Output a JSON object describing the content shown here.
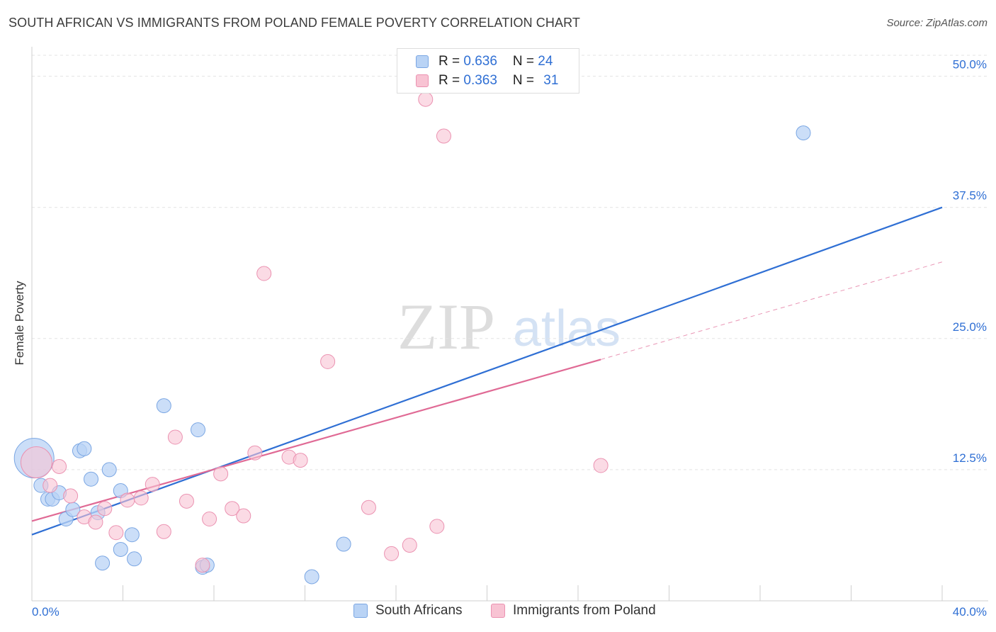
{
  "title": "SOUTH AFRICAN VS IMMIGRANTS FROM POLAND FEMALE POVERTY CORRELATION CHART",
  "source": "Source: ZipAtlas.com",
  "watermark": {
    "zip": "ZIP",
    "atlas": "atlas"
  },
  "legend_top": {
    "rows": [
      {
        "r_label": "R = ",
        "r_value": "0.636",
        "n_label": "N = ",
        "n_value": "24"
      },
      {
        "r_label": "R = ",
        "r_value": "0.363",
        "n_label": "N = ",
        "n_value": "31"
      }
    ]
  },
  "chart_data": {
    "type": "scatter",
    "title": "SOUTH AFRICAN VS IMMIGRANTS FROM POLAND FEMALE POVERTY CORRELATION CHART",
    "xlabel": "",
    "ylabel": "Female Poverty",
    "xlim": [
      0,
      40
    ],
    "ylim": [
      0,
      52
    ],
    "x_tick_labels": [
      "0.0%",
      "40.0%"
    ],
    "y_ticks": [
      12.5,
      25.0,
      37.5,
      50.0
    ],
    "y_tick_labels": [
      "12.5%",
      "25.0%",
      "37.5%",
      "50.0%"
    ],
    "grid": true,
    "colors": {
      "blue": "#2f6fd4",
      "pink": "#e06a95",
      "blue_fill": "#b9d3f5",
      "pink_fill": "#f8c3d3"
    },
    "series": [
      {
        "name": "South Africans",
        "color": "#2f6fd4",
        "points": [
          [
            0.1,
            13.6
          ],
          [
            0.4,
            11.0
          ],
          [
            0.7,
            9.7
          ],
          [
            0.9,
            9.7
          ],
          [
            1.2,
            10.3
          ],
          [
            1.5,
            7.8
          ],
          [
            1.8,
            8.7
          ],
          [
            2.1,
            14.3
          ],
          [
            2.3,
            14.5
          ],
          [
            2.6,
            11.6
          ],
          [
            2.9,
            8.4
          ],
          [
            3.1,
            3.6
          ],
          [
            3.4,
            12.5
          ],
          [
            3.9,
            10.5
          ],
          [
            3.9,
            4.9
          ],
          [
            4.4,
            6.3
          ],
          [
            4.5,
            4.0
          ],
          [
            5.8,
            18.6
          ],
          [
            7.3,
            16.3
          ],
          [
            7.5,
            3.2
          ],
          [
            7.7,
            3.4
          ],
          [
            12.3,
            2.3
          ],
          [
            13.7,
            5.4
          ],
          [
            33.9,
            44.6
          ]
        ],
        "sizes": [
          28,
          10,
          10,
          10,
          10,
          10,
          10,
          10,
          10,
          10,
          10,
          10,
          10,
          10,
          10,
          10,
          10,
          10,
          10,
          10,
          10,
          10,
          10,
          10
        ],
        "trend": {
          "x": [
            0,
            40
          ],
          "y": [
            6.3,
            37.5
          ],
          "style": "solid"
        }
      },
      {
        "name": "Immigrants from Poland",
        "color": "#e06a95",
        "points": [
          [
            0.2,
            13.2
          ],
          [
            0.8,
            11.0
          ],
          [
            1.2,
            12.8
          ],
          [
            1.7,
            10.0
          ],
          [
            2.3,
            8.0
          ],
          [
            2.8,
            7.5
          ],
          [
            3.2,
            8.8
          ],
          [
            3.7,
            6.5
          ],
          [
            4.2,
            9.6
          ],
          [
            4.8,
            9.8
          ],
          [
            5.3,
            11.1
          ],
          [
            5.8,
            6.6
          ],
          [
            6.3,
            15.6
          ],
          [
            6.8,
            9.5
          ],
          [
            7.5,
            3.4
          ],
          [
            7.8,
            7.8
          ],
          [
            8.3,
            12.1
          ],
          [
            8.8,
            8.8
          ],
          [
            9.3,
            8.1
          ],
          [
            9.8,
            14.1
          ],
          [
            10.2,
            31.2
          ],
          [
            11.3,
            13.7
          ],
          [
            11.8,
            13.4
          ],
          [
            13.0,
            22.8
          ],
          [
            14.8,
            8.9
          ],
          [
            15.8,
            4.5
          ],
          [
            16.6,
            5.3
          ],
          [
            17.3,
            47.8
          ],
          [
            17.8,
            7.1
          ],
          [
            18.1,
            44.3
          ],
          [
            25.0,
            12.9
          ]
        ],
        "sizes": [
          22,
          10,
          10,
          10,
          10,
          10,
          10,
          10,
          10,
          10,
          10,
          10,
          10,
          10,
          10,
          10,
          10,
          10,
          10,
          10,
          10,
          10,
          10,
          10,
          10,
          10,
          10,
          10,
          10,
          10,
          10
        ],
        "trend": {
          "x": [
            0,
            25
          ],
          "y": [
            7.6,
            23.0
          ],
          "style": "solid"
        },
        "trend_extension": {
          "x": [
            25,
            40
          ],
          "y": [
            23.0,
            32.3
          ],
          "style": "dashed"
        }
      }
    ]
  },
  "legend_bottom": {
    "items": [
      {
        "label": "South Africans"
      },
      {
        "label": "Immigrants from Poland"
      }
    ]
  }
}
